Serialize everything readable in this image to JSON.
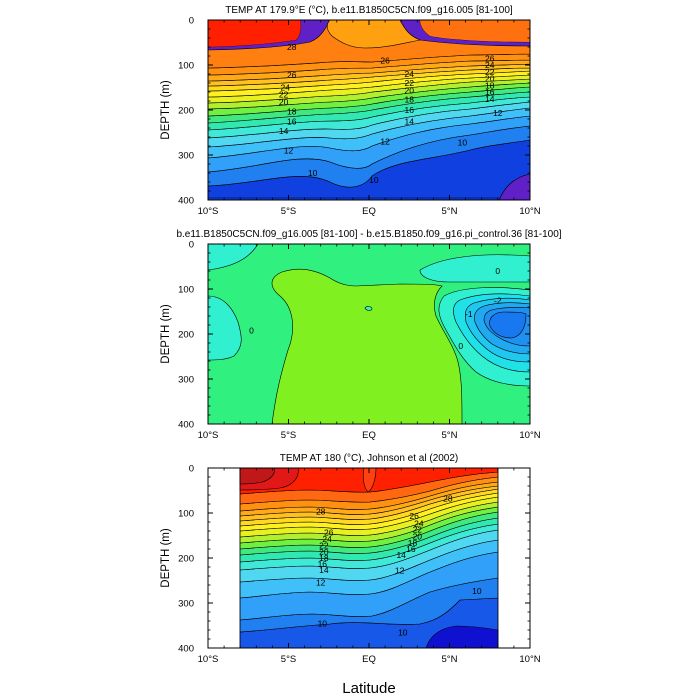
{
  "figure": {
    "x_axis_title": "Latitude",
    "colors": {
      "frame": "#000000",
      "contour_line": "#000000",
      "background": "#ffffff"
    }
  },
  "chart_data": [
    {
      "type": "contour",
      "panel": "top",
      "title": "TEMP AT 179.9°E (°C), b.e11.B1850C5CN.f09_g16.005 [81-100]",
      "ylabel": "DEPTH (m)",
      "xlabel": "",
      "x_range": [
        -10,
        10
      ],
      "y_range": [
        0,
        400
      ],
      "y_inverted": true,
      "x_ticks": [
        -10,
        -5,
        0,
        5,
        10
      ],
      "x_tick_labels": [
        "10°S",
        "5°S",
        "EQ",
        "5°N",
        "10°N"
      ],
      "y_ticks": [
        0,
        100,
        200,
        300,
        400
      ],
      "y_tick_labels": [
        "0",
        "100",
        "200",
        "300",
        "400"
      ],
      "contour_levels": [
        9,
        10,
        11,
        12,
        13,
        14,
        15,
        16,
        17,
        18,
        19,
        20,
        21,
        22,
        23,
        24,
        25,
        26,
        27,
        28
      ],
      "contour_labels": [
        {
          "text": "28",
          "x": -4.8,
          "y": 60
        },
        {
          "text": "26",
          "x": -4.8,
          "y": 122
        },
        {
          "text": "24",
          "x": -5.2,
          "y": 150
        },
        {
          "text": "22",
          "x": -5.3,
          "y": 166
        },
        {
          "text": "20",
          "x": -5.3,
          "y": 182
        },
        {
          "text": "18",
          "x": -4.8,
          "y": 203
        },
        {
          "text": "16",
          "x": -4.8,
          "y": 225
        },
        {
          "text": "14",
          "x": -5.3,
          "y": 247
        },
        {
          "text": "12",
          "x": -5.0,
          "y": 290
        },
        {
          "text": "10",
          "x": -3.5,
          "y": 340
        },
        {
          "text": "26",
          "x": 1.0,
          "y": 90
        },
        {
          "text": "24",
          "x": 2.5,
          "y": 120
        },
        {
          "text": "22",
          "x": 2.5,
          "y": 140
        },
        {
          "text": "20",
          "x": 2.5,
          "y": 157
        },
        {
          "text": "18",
          "x": 2.5,
          "y": 177
        },
        {
          "text": "16",
          "x": 2.5,
          "y": 200
        },
        {
          "text": "14",
          "x": 2.5,
          "y": 225
        },
        {
          "text": "12",
          "x": 1.0,
          "y": 270
        },
        {
          "text": "10",
          "x": 0.3,
          "y": 355
        },
        {
          "text": "26",
          "x": 7.5,
          "y": 85
        },
        {
          "text": "24",
          "x": 7.5,
          "y": 100
        },
        {
          "text": "22",
          "x": 7.5,
          "y": 115
        },
        {
          "text": "20",
          "x": 7.5,
          "y": 130
        },
        {
          "text": "18",
          "x": 7.5,
          "y": 145
        },
        {
          "text": "16",
          "x": 7.5,
          "y": 160
        },
        {
          "text": "14",
          "x": 7.5,
          "y": 175
        },
        {
          "text": "12",
          "x": 8.0,
          "y": 207
        },
        {
          "text": "10",
          "x": 5.8,
          "y": 272
        }
      ]
    },
    {
      "type": "contour",
      "panel": "middle",
      "title": "b.e11.B1850C5CN.f09_g16.005 [81-100] - b.e15.B1850.f09_g16.pi_control.36 [81-100]",
      "ylabel": "DEPTH (m)",
      "xlabel": "",
      "x_range": [
        -10,
        10
      ],
      "y_range": [
        0,
        400
      ],
      "y_inverted": true,
      "x_ticks": [
        -10,
        -5,
        0,
        5,
        10
      ],
      "x_tick_labels": [
        "10°S",
        "5°S",
        "EQ",
        "5°N",
        "10°N"
      ],
      "y_ticks": [
        0,
        100,
        200,
        300,
        400
      ],
      "y_tick_labels": [
        "0",
        "100",
        "200",
        "300",
        "400"
      ],
      "contour_levels": [
        -2,
        -1.75,
        -1.5,
        -1.25,
        -1,
        -0.75,
        -0.5,
        -0.25,
        0
      ],
      "contour_labels": [
        {
          "text": "0",
          "x": -7.3,
          "y": 192
        },
        {
          "text": "0",
          "x": 8.0,
          "y": 60
        },
        {
          "text": "-2",
          "x": 8.0,
          "y": 125
        },
        {
          "text": "-1",
          "x": 6.2,
          "y": 155
        },
        {
          "text": "0",
          "x": 5.7,
          "y": 227
        }
      ]
    },
    {
      "type": "contour",
      "panel": "bottom",
      "title": "TEMP AT 180 (°C), Johnson et al (2002)",
      "ylabel": "DEPTH (m)",
      "xlabel": "Latitude",
      "x_range": [
        -10,
        10
      ],
      "y_range": [
        0,
        400
      ],
      "y_inverted": true,
      "data_x_range": [
        -8,
        8
      ],
      "x_ticks": [
        -10,
        -5,
        0,
        5,
        10
      ],
      "x_tick_labels": [
        "10°S",
        "5°S",
        "EQ",
        "5°N",
        "10°N"
      ],
      "y_ticks": [
        0,
        100,
        200,
        300,
        400
      ],
      "y_tick_labels": [
        "0",
        "100",
        "200",
        "300",
        "400"
      ],
      "contour_levels": [
        9,
        10,
        11,
        12,
        13,
        14,
        15,
        16,
        17,
        18,
        19,
        20,
        21,
        22,
        23,
        24,
        25,
        26,
        27,
        28,
        29
      ],
      "contour_labels": [
        {
          "text": "28",
          "x": -3.0,
          "y": 97
        },
        {
          "text": "26",
          "x": -2.5,
          "y": 143
        },
        {
          "text": "24",
          "x": -2.6,
          "y": 158
        },
        {
          "text": "22",
          "x": -2.8,
          "y": 172
        },
        {
          "text": "20",
          "x": -2.8,
          "y": 187
        },
        {
          "text": "18",
          "x": -2.8,
          "y": 200
        },
        {
          "text": "16",
          "x": -2.9,
          "y": 213
        },
        {
          "text": "14",
          "x": -2.8,
          "y": 227
        },
        {
          "text": "12",
          "x": -3.0,
          "y": 254
        },
        {
          "text": "10",
          "x": -2.9,
          "y": 345
        },
        {
          "text": "28",
          "x": 4.9,
          "y": 68
        },
        {
          "text": "26",
          "x": 2.8,
          "y": 107
        },
        {
          "text": "24",
          "x": 3.1,
          "y": 123
        },
        {
          "text": "22",
          "x": 3.0,
          "y": 137
        },
        {
          "text": "20",
          "x": 3.0,
          "y": 152
        },
        {
          "text": "18",
          "x": 2.7,
          "y": 167
        },
        {
          "text": "16",
          "x": 2.6,
          "y": 180
        },
        {
          "text": "14",
          "x": 2.0,
          "y": 193
        },
        {
          "text": "12",
          "x": 1.9,
          "y": 228
        },
        {
          "text": "10",
          "x": 6.7,
          "y": 273
        },
        {
          "text": "10",
          "x": 2.1,
          "y": 365
        }
      ]
    }
  ]
}
